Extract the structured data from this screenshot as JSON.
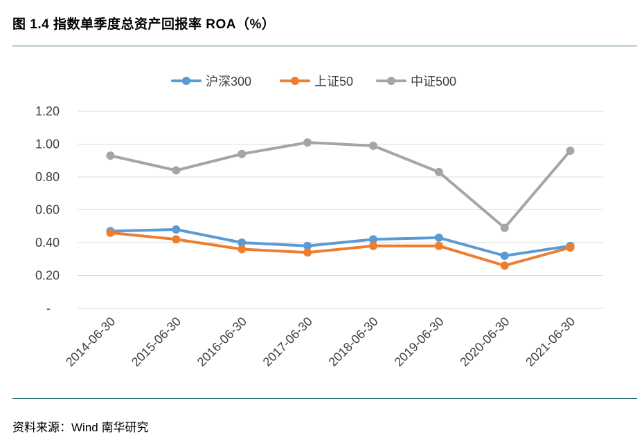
{
  "figure": {
    "title": "图 1.4 指数单季度总资产回报率 ROA（%）",
    "source": "资料来源：Wind 南华研究"
  },
  "chart_data": {
    "type": "line",
    "title": "",
    "xlabel": "",
    "ylabel": "",
    "categories": [
      "2014-06-30",
      "2015-06-30",
      "2016-06-30",
      "2017-06-30",
      "2018-06-30",
      "2019-06-30",
      "2020-06-30",
      "2021-06-30"
    ],
    "yticks": [
      "-",
      "0.20",
      "0.40",
      "0.60",
      "0.80",
      "1.00",
      "1.20"
    ],
    "ylim": [
      0,
      1.2
    ],
    "grid": true,
    "legend_position": "top",
    "series": [
      {
        "name": "沪深300",
        "color": "#5b9bd5",
        "values": [
          0.47,
          0.48,
          0.4,
          0.38,
          0.42,
          0.43,
          0.32,
          0.38
        ]
      },
      {
        "name": "上证50",
        "color": "#ed7d31",
        "values": [
          0.46,
          0.42,
          0.36,
          0.34,
          0.38,
          0.38,
          0.26,
          0.37
        ]
      },
      {
        "name": "中证500",
        "color": "#a5a5a5",
        "values": [
          0.93,
          0.84,
          0.94,
          1.01,
          0.99,
          0.83,
          0.49,
          0.96
        ]
      }
    ]
  }
}
